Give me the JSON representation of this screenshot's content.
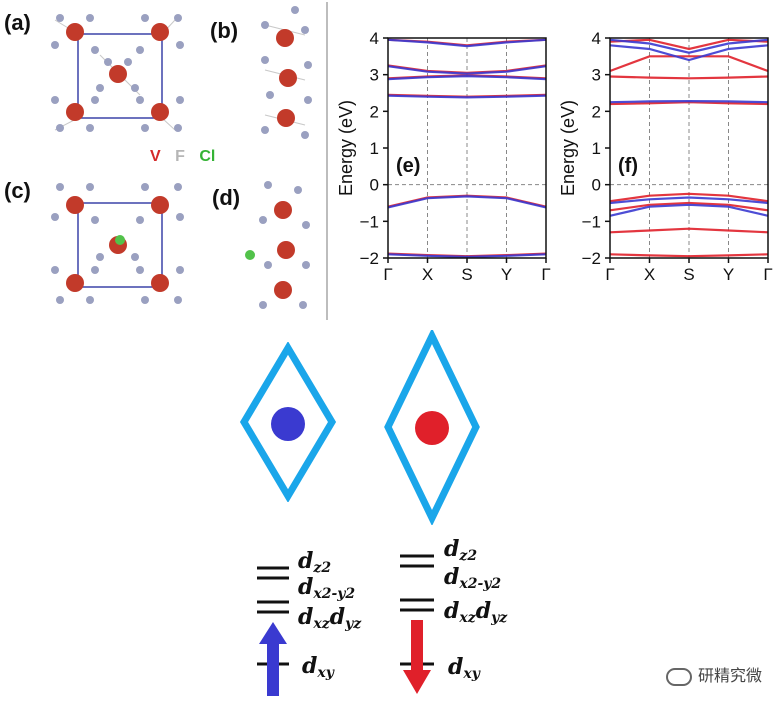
{
  "panels": {
    "a": "(a)",
    "b": "(b)",
    "c": "(c)",
    "d": "(d)",
    "e": "(e)",
    "f": "(f)"
  },
  "legend": {
    "v": "V",
    "f": "F",
    "cl": "Cl"
  },
  "orbitals": {
    "dz2": "d",
    "dz2_sub": "z2",
    "dx2y2": "d",
    "dx2y2_sub": "x2-y2",
    "dxzdyz_1": "d",
    "dxzdyz_1_sub": "xz",
    "dxzdyz_2": "d",
    "dxzdyz_2_sub": "yz",
    "dxy": "d",
    "dxy_sub": "xy"
  },
  "watermark": "研精究微",
  "colors": {
    "spin_up": "#3a3ad0",
    "spin_down": "#e0202a",
    "diamond": "#1aa6ea",
    "vanadium": "#c23a2a",
    "fluorine": "#9aa0c0",
    "chlorine": "#52c24a"
  },
  "chart_data": [
    {
      "type": "line",
      "panel": "(e)",
      "ylabel": "Energy (eV)",
      "xlabel": "",
      "ylim": [
        -2,
        4
      ],
      "yticks": [
        -2,
        -1,
        0,
        1,
        2,
        3,
        4
      ],
      "xticks": [
        "Γ",
        "X",
        "S",
        "Y",
        "Γ"
      ],
      "grid": "dashed vertical at high-symmetry points, dashed horizontal at 0",
      "series": [
        {
          "color": "#e0202a",
          "x": [
            0,
            1,
            2,
            3,
            4
          ],
          "y": [
            3.95,
            3.9,
            3.8,
            3.9,
            3.95
          ]
        },
        {
          "color": "#e0202a",
          "x": [
            0,
            1,
            2,
            3,
            4
          ],
          "y": [
            3.25,
            3.1,
            3.05,
            3.1,
            3.25
          ]
        },
        {
          "color": "#e0202a",
          "x": [
            0,
            1,
            2,
            3,
            4
          ],
          "y": [
            2.9,
            2.95,
            2.98,
            2.95,
            2.9
          ]
        },
        {
          "color": "#e0202a",
          "x": [
            0,
            1,
            2,
            3,
            4
          ],
          "y": [
            2.45,
            2.42,
            2.4,
            2.42,
            2.45
          ]
        },
        {
          "color": "#e0202a",
          "x": [
            0,
            1,
            2,
            3,
            4
          ],
          "y": [
            -0.6,
            -0.35,
            -0.3,
            -0.35,
            -0.6
          ]
        },
        {
          "color": "#e0202a",
          "x": [
            0,
            1,
            2,
            3,
            4
          ],
          "y": [
            -1.88,
            -1.92,
            -1.95,
            -1.92,
            -1.88
          ]
        },
        {
          "color": "#3a3ad0",
          "x": [
            0,
            1,
            2,
            3,
            4
          ],
          "y": [
            3.95,
            3.88,
            3.78,
            3.88,
            3.95
          ]
        },
        {
          "color": "#3a3ad0",
          "x": [
            0,
            1,
            2,
            3,
            4
          ],
          "y": [
            3.23,
            3.08,
            3.03,
            3.08,
            3.23
          ]
        },
        {
          "color": "#3a3ad0",
          "x": [
            0,
            1,
            2,
            3,
            4
          ],
          "y": [
            2.88,
            2.93,
            2.96,
            2.93,
            2.88
          ]
        },
        {
          "color": "#3a3ad0",
          "x": [
            0,
            1,
            2,
            3,
            4
          ],
          "y": [
            2.43,
            2.4,
            2.38,
            2.4,
            2.43
          ]
        },
        {
          "color": "#3a3ad0",
          "x": [
            0,
            1,
            2,
            3,
            4
          ],
          "y": [
            -0.62,
            -0.37,
            -0.32,
            -0.37,
            -0.62
          ]
        },
        {
          "color": "#3a3ad0",
          "x": [
            0,
            1,
            2,
            3,
            4
          ],
          "y": [
            -1.9,
            -1.94,
            -1.97,
            -1.94,
            -1.9
          ]
        }
      ]
    },
    {
      "type": "line",
      "panel": "(f)",
      "ylabel": "Energy (eV)",
      "xlabel": "",
      "ylim": [
        -2,
        4
      ],
      "yticks": [
        -2,
        -1,
        0,
        1,
        2,
        3,
        4
      ],
      "xticks": [
        "Γ",
        "X",
        "S",
        "Y",
        "Γ"
      ],
      "grid": "dashed vertical at high-symmetry points, dashed horizontal at 0",
      "series": [
        {
          "color": "#e0202a",
          "x": [
            0,
            1,
            2,
            3,
            4
          ],
          "y": [
            3.9,
            3.95,
            3.7,
            3.95,
            3.9
          ]
        },
        {
          "color": "#e0202a",
          "x": [
            0,
            1,
            2,
            3,
            4
          ],
          "y": [
            3.1,
            3.5,
            3.5,
            3.5,
            3.1
          ]
        },
        {
          "color": "#e0202a",
          "x": [
            0,
            1,
            2,
            3,
            4
          ],
          "y": [
            2.95,
            2.92,
            2.9,
            2.92,
            2.95
          ]
        },
        {
          "color": "#e0202a",
          "x": [
            0,
            1,
            2,
            3,
            4
          ],
          "y": [
            2.2,
            2.22,
            2.25,
            2.22,
            2.2
          ]
        },
        {
          "color": "#e0202a",
          "x": [
            0,
            1,
            2,
            3,
            4
          ],
          "y": [
            -0.45,
            -0.3,
            -0.25,
            -0.3,
            -0.45
          ]
        },
        {
          "color": "#e0202a",
          "x": [
            0,
            1,
            2,
            3,
            4
          ],
          "y": [
            -0.7,
            -0.55,
            -0.5,
            -0.55,
            -0.7
          ]
        },
        {
          "color": "#e0202a",
          "x": [
            0,
            1,
            2,
            3,
            4
          ],
          "y": [
            -1.3,
            -1.25,
            -1.2,
            -1.25,
            -1.3
          ]
        },
        {
          "color": "#e0202a",
          "x": [
            0,
            1,
            2,
            3,
            4
          ],
          "y": [
            -1.9,
            -1.93,
            -1.95,
            -1.93,
            -1.9
          ]
        },
        {
          "color": "#3a3ad0",
          "x": [
            0,
            1,
            2,
            3,
            4
          ],
          "y": [
            3.95,
            3.85,
            3.6,
            3.85,
            3.95
          ]
        },
        {
          "color": "#3a3ad0",
          "x": [
            0,
            1,
            2,
            3,
            4
          ],
          "y": [
            3.8,
            3.7,
            3.4,
            3.7,
            3.8
          ]
        },
        {
          "color": "#3a3ad0",
          "x": [
            0,
            1,
            2,
            3,
            4
          ],
          "y": [
            2.25,
            2.27,
            2.28,
            2.27,
            2.25
          ]
        },
        {
          "color": "#3a3ad0",
          "x": [
            0,
            1,
            2,
            3,
            4
          ],
          "y": [
            -0.85,
            -0.6,
            -0.55,
            -0.6,
            -0.85
          ]
        },
        {
          "color": "#3a3ad0",
          "x": [
            0,
            1,
            2,
            3,
            4
          ],
          "y": [
            -0.5,
            -0.4,
            -0.35,
            -0.4,
            -0.5
          ]
        }
      ]
    }
  ]
}
